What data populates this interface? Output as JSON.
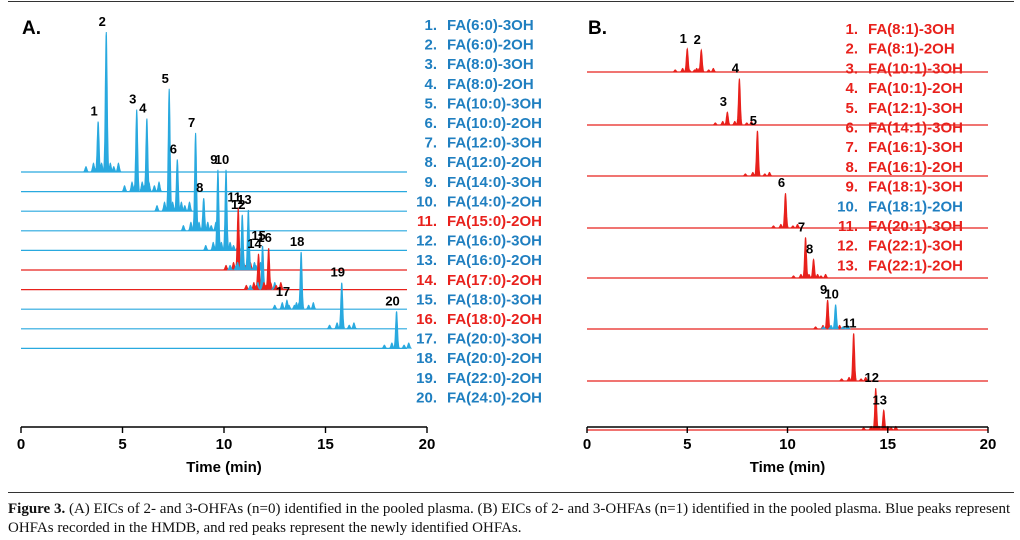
{
  "colors": {
    "blue": "#29a9df",
    "red": "#e8211c",
    "blue_text": "#1f7fc0",
    "red_text": "#e8211c",
    "axis": "#000000"
  },
  "chart_data": [
    {
      "panel": "A.",
      "type": "line",
      "description_role": "stacked extracted ion chromatograms",
      "xlabel": "Time (min)",
      "xlim": [
        0,
        20
      ],
      "xticks": [
        0,
        5,
        10,
        15,
        20
      ],
      "series": [
        {
          "name": "FA(6:0)-3OH",
          "n": "1",
          "color": "blue",
          "rt": 3.8,
          "h": 0.36
        },
        {
          "name": "FA(6:0)-2OH",
          "n": "2",
          "color": "blue",
          "rt": 4.2,
          "h": 1.0
        },
        {
          "name": "FA(8:0)-3OH",
          "n": "3",
          "color": "blue",
          "rt": 5.7,
          "h": 0.54,
          "extra": [
            [
              7.4,
              0.08
            ]
          ]
        },
        {
          "name": "FA(8:0)-2OH",
          "n": "4",
          "color": "blue",
          "rt": 6.2,
          "h": 0.48
        },
        {
          "name": "FA(10:0)-3OH",
          "n": "5",
          "color": "blue",
          "rt": 7.3,
          "h": 0.85
        },
        {
          "name": "FA(10:0)-2OH",
          "n": "6",
          "color": "blue",
          "rt": 7.7,
          "h": 0.36
        },
        {
          "name": "FA(12:0)-3OH",
          "n": "7",
          "color": "blue",
          "rt": 8.6,
          "h": 0.72
        },
        {
          "name": "FA(12:0)-2OH",
          "n": "8",
          "color": "blue",
          "rt": 9.0,
          "h": 0.24
        },
        {
          "name": "FA(14:0)-3OH",
          "n": "9",
          "color": "blue",
          "rt": 9.7,
          "h": 0.63
        },
        {
          "name": "FA(14:0)-2OH",
          "n": "10",
          "color": "blue",
          "rt": 10.1,
          "h": 0.63
        },
        {
          "name": "FA(15:0)-2OH",
          "n": "11",
          "color": "red",
          "rt": 10.7,
          "h": 0.52
        },
        {
          "name": "FA(16:0)-3OH",
          "n": "12",
          "color": "blue",
          "rt": 10.9,
          "h": 0.46
        },
        {
          "name": "FA(16:0)-2OH",
          "n": "13",
          "color": "blue",
          "rt": 11.2,
          "h": 0.5
        },
        {
          "name": "FA(17:0)-2OH",
          "n": "14",
          "color": "red",
          "rt": 11.7,
          "h": 0.32
        },
        {
          "name": "FA(18:0)-3OH",
          "n": "15",
          "color": "blue",
          "rt": 11.9,
          "h": 0.39
        },
        {
          "name": "FA(18:0)-2OH",
          "n": "16",
          "color": "red",
          "rt": 12.2,
          "h": 0.37
        },
        {
          "name": "FA(20:0)-3OH",
          "n": "17",
          "color": "blue",
          "rt": 13.1,
          "h": 0.07
        },
        {
          "name": "FA(20:0)-2OH",
          "n": "18",
          "color": "blue",
          "rt": 13.8,
          "h": 0.55
        },
        {
          "name": "FA(22:0)-2OH",
          "n": "19",
          "color": "blue",
          "rt": 15.8,
          "h": 0.48
        },
        {
          "name": "FA(24:0)-2OH",
          "n": "20",
          "color": "blue",
          "rt": 18.5,
          "h": 0.42
        }
      ]
    },
    {
      "panel": "B.",
      "type": "line",
      "description_role": "stacked extracted ion chromatograms",
      "xlabel": "Time (min)",
      "xlim": [
        0,
        20
      ],
      "xticks": [
        0,
        5,
        10,
        15,
        20
      ],
      "series": [
        {
          "name": "FA(8:1)-3OH",
          "n": "1",
          "color": "red",
          "rt": 5.0,
          "h": 0.4
        },
        {
          "name": "FA(8:1)-2OH",
          "n": "2",
          "color": "red",
          "rt": 5.7,
          "h": 0.38
        },
        {
          "name": "FA(10:1)-3OH",
          "n": "3",
          "color": "red",
          "rt": 7.0,
          "h": 0.22
        },
        {
          "name": "FA(10:1)-2OH",
          "n": "4",
          "color": "red",
          "rt": 7.6,
          "h": 0.8
        },
        {
          "name": "FA(12:1)-3OH",
          "n": "5",
          "color": "red",
          "rt": 8.5,
          "h": 0.78
        },
        {
          "name": "FA(14:1)-3OH",
          "n": "6",
          "color": "red",
          "rt": 9.9,
          "h": 0.6
        },
        {
          "name": "FA(16:1)-3OH",
          "n": "7",
          "color": "red",
          "rt": 10.9,
          "h": 0.7
        },
        {
          "name": "FA(16:1)-2OH",
          "n": "8",
          "color": "red",
          "rt": 11.3,
          "h": 0.32
        },
        {
          "name": "FA(18:1)-3OH",
          "n": "9",
          "color": "red",
          "rt": 12.0,
          "h": 0.5
        },
        {
          "name": "FA(18:1)-2OH",
          "n": "10",
          "color": "blue",
          "rt": 12.4,
          "h": 0.42
        },
        {
          "name": "FA(20:1)-3OH",
          "n": "11",
          "color": "red",
          "rt": 13.3,
          "h": 0.82
        },
        {
          "name": "FA(22:1)-3OH",
          "n": "12",
          "color": "red",
          "rt": 14.4,
          "h": 0.72
        },
        {
          "name": "FA(22:1)-2OH",
          "n": "13",
          "color": "red",
          "rt": 14.8,
          "h": 0.34
        }
      ]
    }
  ],
  "caption": {
    "label": "Figure 3.",
    "text": " (A) EICs of 2- and 3-OHFAs (n=0) identified in the pooled plasma. (B) EICs of 2- and 3-OHFAs (n=1) identified in the pooled plasma. Blue peaks represent OHFAs recorded in the HMDB, and red peaks represent the newly identified OHFAs."
  }
}
